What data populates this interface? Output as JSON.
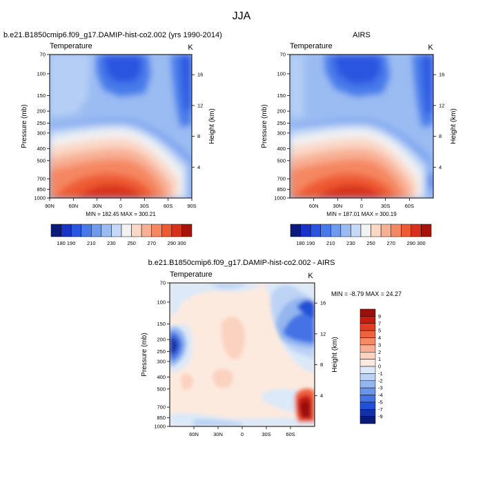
{
  "figure": {
    "title": "JJA"
  },
  "chart_data": [
    {
      "type": "heatmap",
      "panel": "left",
      "title": "b.e21.B1850cmip6.f09_g17.DAMIP-hist-co2.002 (yrs 1990-2014)",
      "variable": "Temperature",
      "units": "K",
      "ylabel": "Pressure (mb)",
      "y2label": "Height (km)",
      "xticks": [
        "90N",
        "60N",
        "30N",
        "0",
        "30S",
        "60S",
        "90S"
      ],
      "yticks": [
        "70",
        "100",
        "150",
        "200",
        "250",
        "300",
        "400",
        "500",
        "700",
        "850",
        "1000"
      ],
      "y2ticks": [
        "16",
        "12",
        "8",
        "4"
      ],
      "min_label": "MIN = 182.45",
      "max_label": "MAX = 300.21",
      "colorbar_levels": [
        "180",
        "190",
        "200",
        "210",
        "220",
        "230",
        "240",
        "250",
        "260",
        "270",
        "280",
        "290",
        "300"
      ],
      "colorbar_labels": [
        "180",
        "190",
        "210",
        "230",
        "250",
        "270",
        "290",
        "300"
      ],
      "colorbar_colors": [
        "#0a1a7a",
        "#1933c8",
        "#2a55e0",
        "#4779ea",
        "#6f9bee",
        "#9bbcf2",
        "#c6daf7",
        "#f2f2f2",
        "#fbd7c6",
        "#f8b094",
        "#f58762",
        "#ee5a32",
        "#d8301a",
        "#a81508"
      ],
      "value_min": 182.45,
      "value_max": 300.21
    },
    {
      "type": "heatmap",
      "panel": "right",
      "title": "AIRS",
      "variable": "Temperature",
      "units": "K",
      "ylabel": "Pressure (mb)",
      "y2label": "Height (km)",
      "xticks": [
        "60N",
        "30N",
        "0",
        "30S",
        "60S"
      ],
      "yticks": [
        "70",
        "100",
        "150",
        "200",
        "250",
        "300",
        "400",
        "500",
        "700",
        "850",
        "1000"
      ],
      "y2ticks": [
        "16",
        "12",
        "8",
        "4"
      ],
      "min_label": "MIN = 187.01",
      "max_label": "MAX = 300.19",
      "colorbar_levels": [
        "180",
        "190",
        "200",
        "210",
        "220",
        "230",
        "240",
        "250",
        "260",
        "270",
        "280",
        "290",
        "300"
      ],
      "colorbar_labels": [
        "180",
        "190",
        "210",
        "230",
        "250",
        "270",
        "290",
        "300"
      ],
      "colorbar_colors": [
        "#0a1a7a",
        "#1933c8",
        "#2a55e0",
        "#4779ea",
        "#6f9bee",
        "#9bbcf2",
        "#c6daf7",
        "#f2f2f2",
        "#fbd7c6",
        "#f8b094",
        "#f58762",
        "#ee5a32",
        "#d8301a",
        "#a81508"
      ],
      "value_min": 187.01,
      "value_max": 300.19
    },
    {
      "type": "heatmap",
      "panel": "difference",
      "title": "b.e21.B1850cmip6.f09_g17.DAMIP-hist-co2.002 - AIRS",
      "variable": "Temperature",
      "units": "K",
      "ylabel": "Pressure (mb)",
      "y2label": "Height (km)",
      "xticks": [
        "60N",
        "30N",
        "0",
        "30S",
        "60S"
      ],
      "yticks": [
        "70",
        "100",
        "150",
        "200",
        "250",
        "300",
        "400",
        "500",
        "700",
        "850",
        "1000"
      ],
      "y2ticks": [
        "16",
        "12",
        "8",
        "4"
      ],
      "min_max_label": "MIN =  -8.79  MAX =  24.27",
      "colorbar_labels": [
        "9",
        "7",
        "5",
        "4",
        "3",
        "2",
        "1",
        "0",
        "-1",
        "-2",
        "-3",
        "-4",
        "-5",
        "-7",
        "-9"
      ],
      "colorbar_colors": [
        "#9c0f0a",
        "#c51c12",
        "#e23c22",
        "#f0623c",
        "#f68a66",
        "#f8ae92",
        "#fbd2bf",
        "#fdeadf",
        "#dce9f8",
        "#bcd3f5",
        "#93b6ef",
        "#6a95ea",
        "#4473e6",
        "#2151d8",
        "#1231a8",
        "#0a1a7a"
      ],
      "value_min": -8.79,
      "value_max": 24.27
    }
  ]
}
